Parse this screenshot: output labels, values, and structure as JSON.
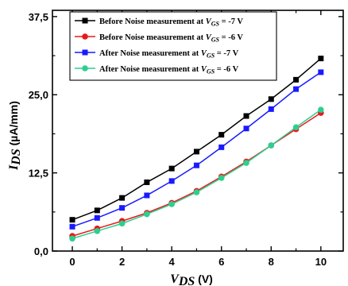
{
  "chart_data": {
    "type": "line",
    "xlabel": {
      "main": "V",
      "sub": "DS",
      "unit": " (V)"
    },
    "ylabel": {
      "main": "I",
      "sub": "DS",
      "unit": " (µA/mm)"
    },
    "xlim": [
      -0.8,
      10.9
    ],
    "ylim": [
      0,
      38.5
    ],
    "xticks": [
      0,
      2,
      4,
      6,
      8,
      10
    ],
    "xtick_labels": [
      "0",
      "2",
      "4",
      "6",
      "8",
      "10"
    ],
    "yticks": [
      0,
      12.5,
      25,
      37.5
    ],
    "ytick_labels": [
      "0,0",
      "12,5",
      "25,0",
      "37,5"
    ],
    "legend_position": "top-left",
    "x": [
      0,
      1,
      2,
      3,
      4,
      5,
      6,
      7,
      8,
      9,
      10
    ],
    "series": [
      {
        "name_prefix": "Before Noise measurement at ",
        "name_var": "V",
        "name_sub": "GS",
        "name_suffix": " = -7 V",
        "color": "#000000",
        "marker": "square",
        "values": [
          5.0,
          6.5,
          8.5,
          11.0,
          13.2,
          15.9,
          18.6,
          21.6,
          24.3,
          27.4,
          30.8
        ]
      },
      {
        "name_prefix": "Before Noise measurement at ",
        "name_var": "V",
        "name_sub": "GS",
        "name_suffix": " = -6 V",
        "color": "#e8191a",
        "marker": "circle",
        "values": [
          2.4,
          3.6,
          4.8,
          6.1,
          7.7,
          9.6,
          11.9,
          14.3,
          16.9,
          19.5,
          22.1
        ]
      },
      {
        "name_prefix": "After Noise measurement at ",
        "name_var": "V",
        "name_sub": "GS",
        "name_suffix": " = -7 V",
        "color": "#1a1aff",
        "marker": "square",
        "values": [
          3.9,
          5.3,
          6.9,
          8.9,
          11.2,
          13.7,
          16.6,
          19.6,
          22.7,
          25.9,
          28.6
        ]
      },
      {
        "name_prefix": "After Noise measurement at ",
        "name_var": "V",
        "name_sub": "GS",
        "name_suffix": " = -6 V",
        "color": "#2dcf8f",
        "marker": "circle",
        "values": [
          2.0,
          3.2,
          4.4,
          5.9,
          7.5,
          9.4,
          11.7,
          14.1,
          16.9,
          19.8,
          22.6
        ]
      }
    ]
  }
}
